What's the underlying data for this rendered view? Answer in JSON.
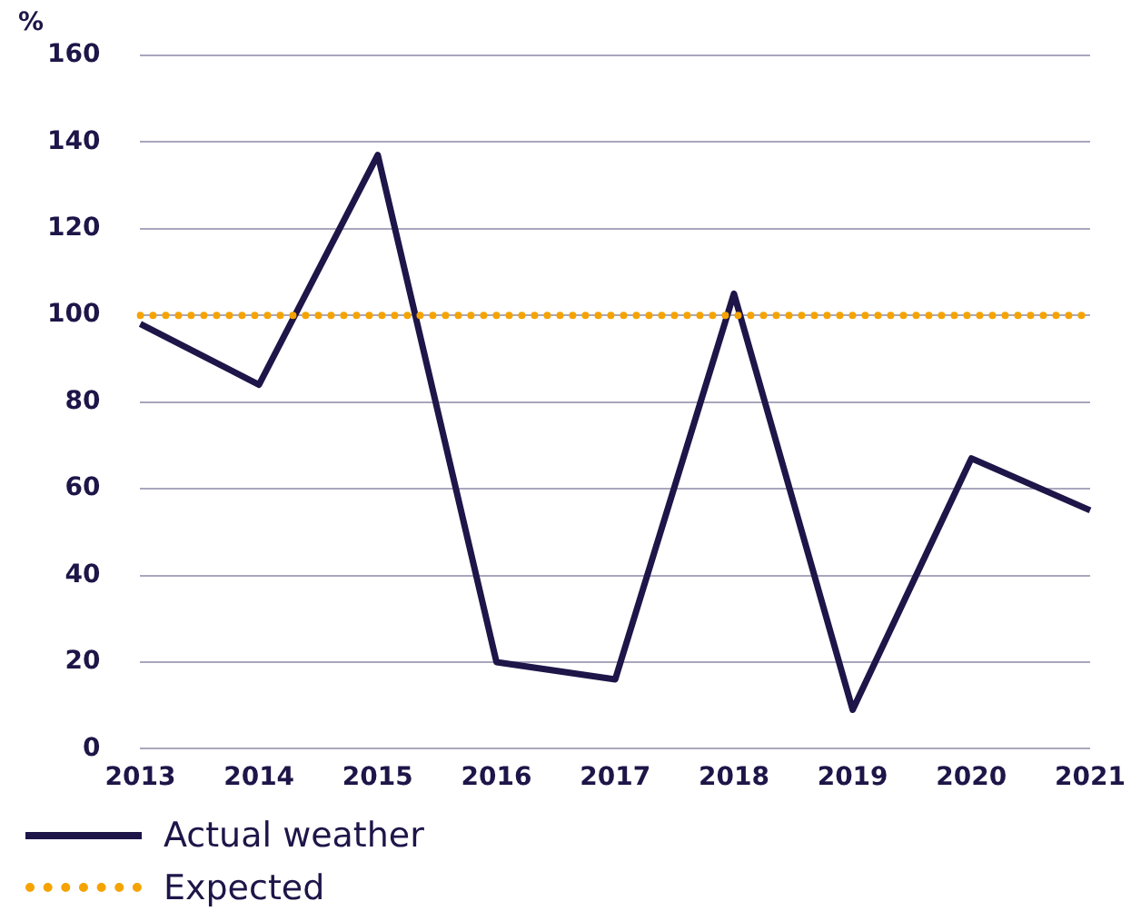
{
  "chart_data": {
    "type": "line",
    "ylabel": "%",
    "categories": [
      "2013",
      "2014",
      "2015",
      "2016",
      "2017",
      "2018",
      "2019",
      "2020",
      "2021"
    ],
    "series": [
      {
        "name": "Actual weather",
        "color": "#1e1548",
        "values": [
          98,
          84,
          137,
          20,
          16,
          105,
          9,
          67,
          55
        ],
        "line_style": "solid"
      },
      {
        "name": "Expected",
        "color": "#f5a300",
        "values": [
          100,
          100,
          100,
          100,
          100,
          100,
          100,
          100,
          100
        ],
        "line_style": "dotted"
      }
    ],
    "ylim": [
      0,
      160
    ],
    "yticks": [
      0,
      20,
      40,
      60,
      80,
      100,
      120,
      140,
      160
    ],
    "grid": "y",
    "legend": "bottom left",
    "marker": "none"
  }
}
